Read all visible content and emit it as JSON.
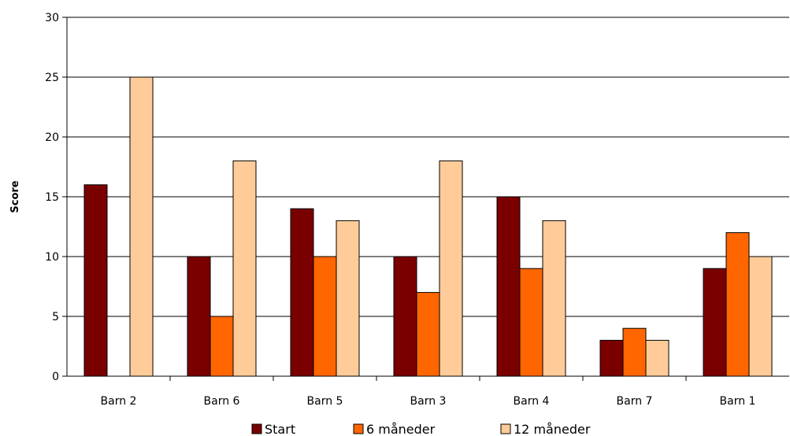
{
  "chart_data": {
    "type": "bar",
    "title": "",
    "xlabel": "",
    "ylabel": "Score",
    "ylim": [
      0,
      30
    ],
    "yticks": [
      0,
      5,
      10,
      15,
      20,
      25,
      30
    ],
    "grid": true,
    "legend_position": "bottom",
    "categories": [
      "Barn 2",
      "Barn 6",
      "Barn 5",
      "Barn 3",
      "Barn 4",
      "Barn 7",
      "Barn 1"
    ],
    "series": [
      {
        "name": "Start",
        "color": "#7a0000",
        "values": [
          16,
          10,
          14,
          10,
          15,
          3,
          9
        ]
      },
      {
        "name": "6 måneder",
        "color": "#ff6600",
        "values": [
          null,
          5,
          10,
          7,
          9,
          4,
          12
        ]
      },
      {
        "name": "12 måneder",
        "color": "#ffcc99",
        "values": [
          25,
          18,
          13,
          18,
          13,
          3,
          10
        ]
      }
    ]
  }
}
